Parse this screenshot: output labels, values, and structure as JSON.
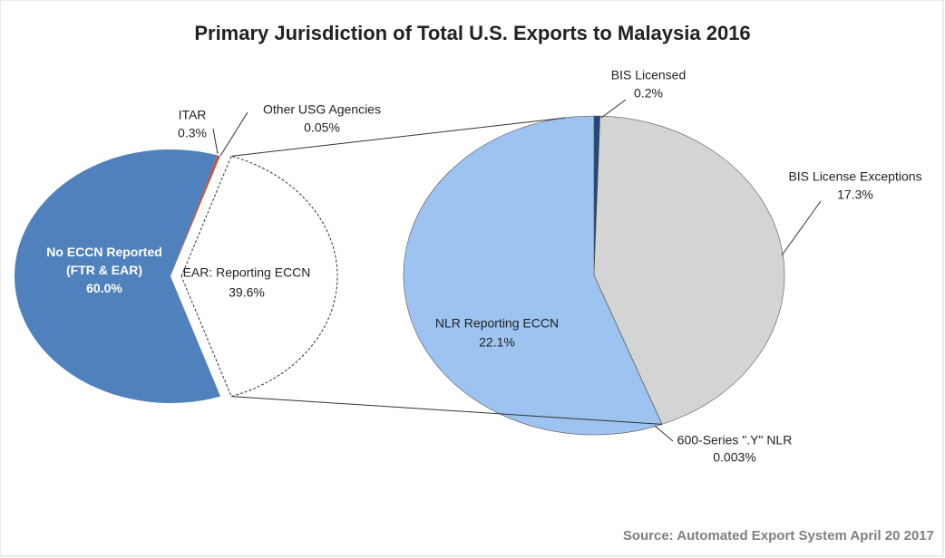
{
  "chart_data": [
    {
      "type": "pie",
      "title": "Primary Jurisdiction of Total U.S. Exports to Malaysia 2016",
      "categories": [
        "EAR: Reporting ECCN",
        "No ECCN Reported (FTR & EAR)",
        "ITAR",
        "Other USG Agencies"
      ],
      "values": [
        39.6,
        60.0,
        0.3,
        0.05
      ],
      "value_labels": [
        "39.6%",
        "60.0%",
        "0.3%",
        "0.05%"
      ],
      "colors": [
        "#ffffff",
        "#4f81bd",
        "#c0504d",
        "#9bbb59"
      ],
      "note": "Source: Automated Export System April 20 2017"
    },
    {
      "type": "pie",
      "categories": [
        "BIS Licensed",
        "BIS License Exceptions",
        "600-Series \".Y\" NLR",
        "NLR Reporting ECCN"
      ],
      "values": [
        0.2,
        17.3,
        0.003,
        22.1
      ],
      "value_labels": [
        "0.2%",
        "17.3%",
        "0.003%",
        "22.1%"
      ],
      "colors": [
        "#1f497d",
        "#d4d4d4",
        "#4f81bd",
        "#9dc3f0"
      ]
    }
  ]
}
